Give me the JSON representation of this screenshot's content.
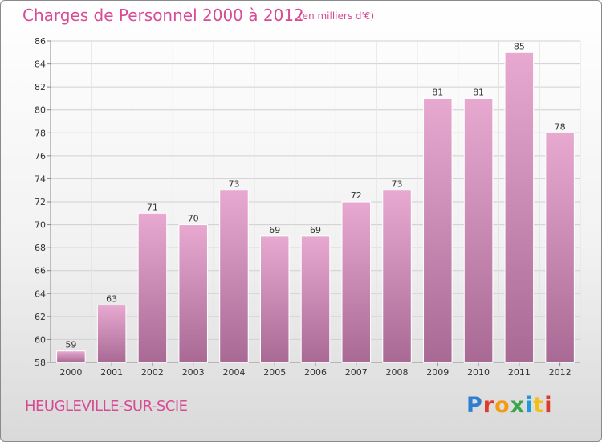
{
  "header": {
    "title": "Charges de Personnel 2000 à 2012",
    "subtitle": "(en milliers d'€)"
  },
  "footer": {
    "commune": "HEUGLEVILLE-SUR-SCIE",
    "logo_letters": [
      "P",
      "r",
      "o",
      "x",
      "i",
      "t",
      "i"
    ]
  },
  "colors": {
    "title": "#d64c94",
    "bar_top": "#e8a9d1",
    "bar_bottom": "#a86a94",
    "grid": "#d0d0d0"
  },
  "chart_data": {
    "type": "bar",
    "categories": [
      "2000",
      "2001",
      "2002",
      "2003",
      "2004",
      "2005",
      "2006",
      "2007",
      "2008",
      "2009",
      "2010",
      "2011",
      "2012"
    ],
    "values": [
      59,
      63,
      71,
      70,
      73,
      69,
      69,
      72,
      73,
      81,
      81,
      85,
      78
    ],
    "ylim": [
      58,
      86
    ],
    "yticks": [
      58,
      60,
      62,
      64,
      66,
      68,
      70,
      72,
      74,
      76,
      78,
      80,
      82,
      84,
      86
    ],
    "grid": true,
    "xlabel": "",
    "ylabel": ""
  }
}
